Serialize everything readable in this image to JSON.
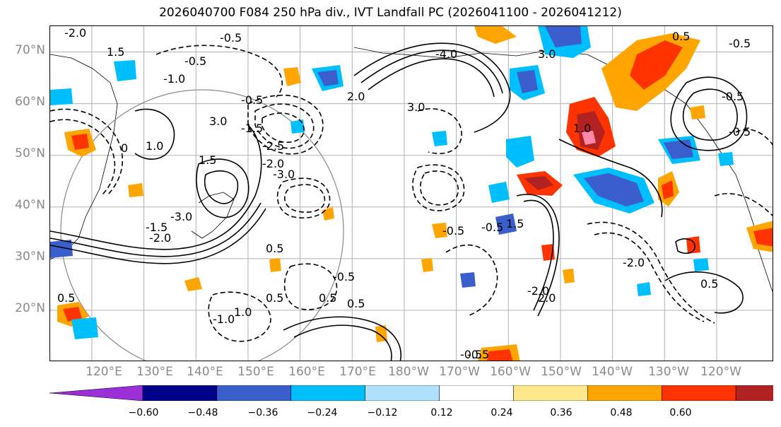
{
  "title": "2026040700 F084 250 hPa div., IVT Landfall PC (2026041100 - 2026041212)",
  "lat_axis": {
    "labels": [
      "70°N",
      "60°N",
      "50°N",
      "40°N",
      "30°N",
      "20°N"
    ],
    "values": [
      70,
      60,
      50,
      40,
      30,
      20
    ],
    "range": [
      10,
      75
    ]
  },
  "lon_axis": {
    "labels": [
      "120°E",
      "130°E",
      "140°E",
      "150°E",
      "160°E",
      "170°E",
      "180°W",
      "170°W",
      "160°W",
      "150°W",
      "140°W",
      "130°W",
      "120°W"
    ],
    "values": [
      120,
      130,
      140,
      150,
      160,
      170,
      180,
      190,
      200,
      210,
      220,
      230,
      240
    ],
    "range": [
      112,
      251
    ]
  },
  "colorbar": {
    "colors": [
      "#9b30d9",
      "#00008b",
      "#3a5fcd",
      "#00bfff",
      "#b0e2ff",
      "#ffffff",
      "#ffe88a",
      "#ffa500",
      "#ff3300",
      "#b22222",
      "#ff88aa"
    ],
    "tick_labels": [
      "−0.60",
      "−0.48",
      "−0.36",
      "−0.24",
      "−0.12",
      "0.12",
      "0.24",
      "0.36",
      "0.48",
      "0.60"
    ]
  },
  "contour_labels": [
    "-2.0",
    "-0.5",
    "1.5",
    "-0.5",
    "-1.0",
    "-0.5",
    "3.0",
    "-1.5",
    "-2.5",
    "-2.0",
    "-3.0",
    "2.0",
    "3.0",
    "1.0",
    "1.5",
    "-3.0",
    "-1.5",
    "-2.0",
    "0.5",
    "-0.5",
    "-0.5",
    "0.5",
    "1.0",
    "-1.0",
    "0.5",
    "0.5",
    "-0.5",
    "1.5",
    "-2.0",
    "-0.5",
    "2.0",
    "-0.5",
    "0.5",
    "-2.0",
    "-4.0",
    "3.0",
    "0.5",
    "-0.5",
    "-0.5",
    "-0.5",
    "1.0",
    "0.5"
  ],
  "circle_label": "0"
}
